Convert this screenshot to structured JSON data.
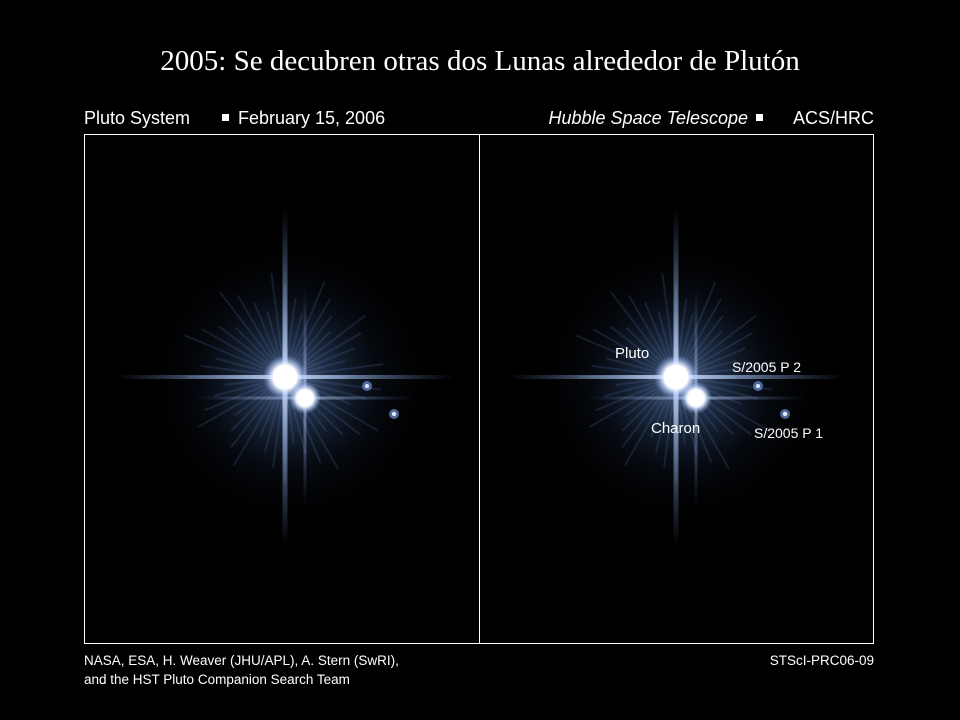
{
  "title": "2005: Se decubren otras dos Lunas alrededor de Plutón",
  "header": {
    "left": [
      "Pluto System",
      "February 15, 2006"
    ],
    "right": [
      "Hubble Space Telescope",
      "ACS/HRC"
    ]
  },
  "labels": {
    "pluto": "Pluto",
    "charon": "Charon",
    "p2": "S/2005 P 2",
    "p1": "S/2005 P 1"
  },
  "credits": {
    "lines": [
      "NASA, ESA, H. Weaver (JHU/APL), A. Stern (SwRI),",
      "and the HST Pluto Companion Search Team"
    ],
    "id": "STScI-PRC06-09"
  }
}
